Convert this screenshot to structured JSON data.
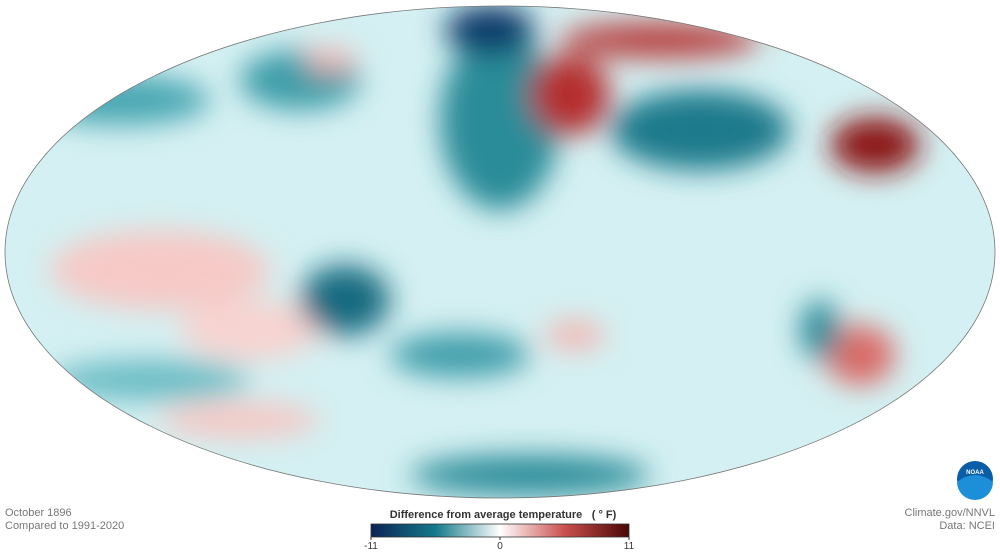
{
  "map": {
    "footer_left": [
      "October 1896",
      "Compared to 1991-2020"
    ],
    "legend": {
      "title": "Difference from average temperature",
      "unit": "( ° F)",
      "range": [
        -11,
        11
      ],
      "ticks": [
        -11,
        0,
        11
      ]
    },
    "credits": [
      "Climate.gov/NNVL",
      "Data: NCEI"
    ],
    "logo": "NOAA"
  }
}
